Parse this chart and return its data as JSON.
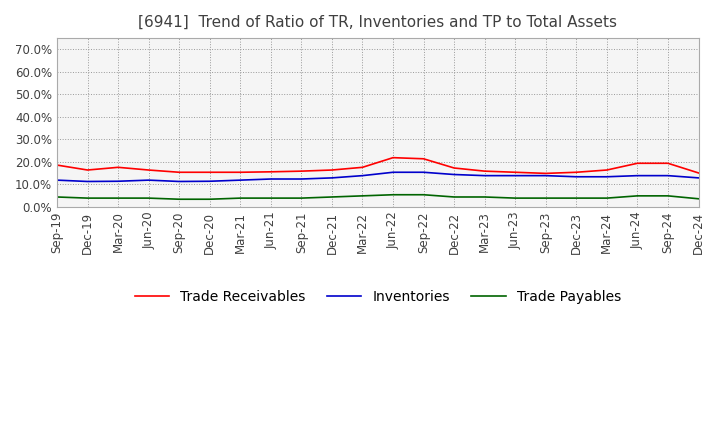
{
  "title": "[6941]  Trend of Ratio of TR, Inventories and TP to Total Assets",
  "title_fontsize": 11,
  "title_color": "#404040",
  "ylim": [
    0.0,
    0.75
  ],
  "yticks": [
    0.0,
    0.1,
    0.2,
    0.3,
    0.4,
    0.5,
    0.6,
    0.7
  ],
  "ytick_labels": [
    "0.0%",
    "10.0%",
    "20.0%",
    "30.0%",
    "40.0%",
    "50.0%",
    "60.0%",
    "70.0%"
  ],
  "x_labels": [
    "Sep-19",
    "Dec-19",
    "Mar-20",
    "Jun-20",
    "Sep-20",
    "Dec-20",
    "Mar-21",
    "Jun-21",
    "Sep-21",
    "Dec-21",
    "Mar-22",
    "Jun-22",
    "Sep-22",
    "Dec-22",
    "Mar-23",
    "Jun-23",
    "Sep-23",
    "Dec-23",
    "Mar-24",
    "Jun-24",
    "Sep-24",
    "Dec-24"
  ],
  "trade_receivables": [
    0.185,
    0.163,
    0.175,
    0.163,
    0.153,
    0.153,
    0.153,
    0.155,
    0.158,
    0.163,
    0.175,
    0.218,
    0.213,
    0.172,
    0.158,
    0.153,
    0.148,
    0.153,
    0.163,
    0.193,
    0.193,
    0.15
  ],
  "inventories": [
    0.118,
    0.112,
    0.113,
    0.118,
    0.112,
    0.113,
    0.118,
    0.123,
    0.123,
    0.128,
    0.138,
    0.153,
    0.153,
    0.143,
    0.138,
    0.138,
    0.138,
    0.133,
    0.133,
    0.138,
    0.138,
    0.128
  ],
  "trade_payables": [
    0.043,
    0.038,
    0.038,
    0.038,
    0.033,
    0.033,
    0.038,
    0.038,
    0.038,
    0.043,
    0.048,
    0.053,
    0.053,
    0.043,
    0.043,
    0.038,
    0.038,
    0.038,
    0.038,
    0.048,
    0.048,
    0.035
  ],
  "tr_color": "#ff0000",
  "inv_color": "#0000cc",
  "tp_color": "#006400",
  "tr_label": "Trade Receivables",
  "inv_label": "Inventories",
  "tp_label": "Trade Payables",
  "grid_color": "#999999",
  "bg_color": "#ffffff",
  "plot_bg_color": "#f5f5f5",
  "legend_fontsize": 10,
  "tick_fontsize": 8.5,
  "line_width": 1.2
}
